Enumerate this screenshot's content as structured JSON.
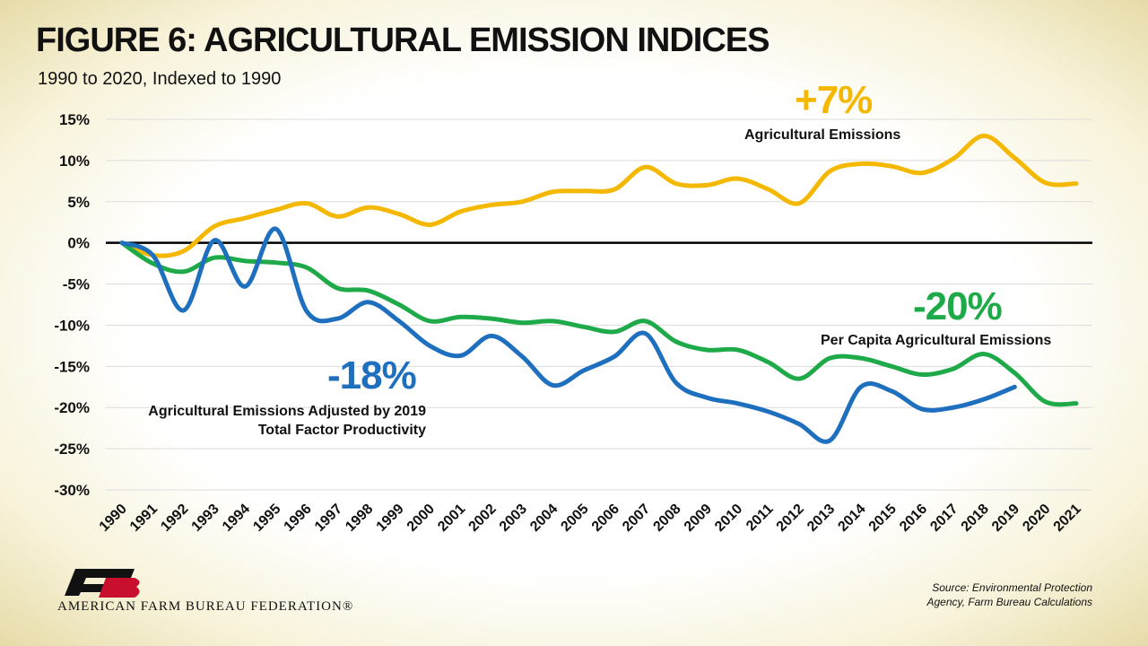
{
  "chart_data": {
    "type": "line",
    "title": "FIGURE 6: AGRICULTURAL EMISSION INDICES",
    "subtitle": "1990 to 2020, Indexed to 1990",
    "categories": [
      "1990",
      "1991",
      "1992",
      "1993",
      "1994",
      "1995",
      "1996",
      "1997",
      "1998",
      "1999",
      "2000",
      "2001",
      "2002",
      "2003",
      "2004",
      "2005",
      "2006",
      "2007",
      "2008",
      "2009",
      "2010",
      "2011",
      "2012",
      "2013",
      "2014",
      "2015",
      "2016",
      "2017",
      "2018",
      "2019",
      "2020",
      "2021"
    ],
    "ylim": [
      -30,
      15
    ],
    "yticks": [
      {
        "value": 15,
        "label": "15%"
      },
      {
        "value": 10,
        "label": "10%"
      },
      {
        "value": 5,
        "label": "5%"
      },
      {
        "value": 0,
        "label": "0%"
      },
      {
        "value": -5,
        "label": "-5%"
      },
      {
        "value": -10,
        "label": "-10%"
      },
      {
        "value": -15,
        "label": "-15%"
      },
      {
        "value": -20,
        "label": "-20%"
      },
      {
        "value": -25,
        "label": "-25%"
      },
      {
        "value": -30,
        "label": "-30%"
      }
    ],
    "grid": true,
    "series": [
      {
        "name": "Agricultural Emissions",
        "color": "#f5b800",
        "end_label": "+7%",
        "values": [
          0,
          -1.5,
          -1,
          2,
          3,
          4,
          4.8,
          3.2,
          4.3,
          3.5,
          2.2,
          3.8,
          4.6,
          5,
          6.2,
          6.3,
          6.5,
          9.2,
          7.2,
          7,
          7.8,
          6.5,
          4.8,
          8.7,
          9.6,
          9.3,
          8.5,
          10.2,
          13,
          10.3,
          7.3,
          7.2
        ]
      },
      {
        "name": "Per Capita Agricultural Emissions",
        "color": "#1faa4a",
        "end_label": "-20%",
        "values": [
          0,
          -2.5,
          -3.5,
          -1.8,
          -2.2,
          -2.4,
          -3,
          -5.5,
          -5.8,
          -7.5,
          -9.5,
          -9,
          -9.2,
          -9.7,
          -9.5,
          -10.2,
          -10.8,
          -9.5,
          -12,
          -13,
          -13,
          -14.5,
          -16.5,
          -14,
          -14,
          -15,
          -16,
          -15.3,
          -13.5,
          -15.8,
          -19.3,
          -19.5
        ]
      },
      {
        "name": "Agricultural Emissions Adjusted by 2019 Total Factor Productivity",
        "color": "#1f6fbf",
        "end_label": "-18%",
        "values": [
          0,
          -1.5,
          -8.2,
          0.3,
          -5.3,
          1.7,
          -8.3,
          -9.2,
          -7.2,
          -9.5,
          -12.5,
          -13.7,
          -11.3,
          -13.8,
          -17.3,
          -15.5,
          -13.8,
          -11,
          -17,
          -18.8,
          -19.5,
          -20.5,
          -22,
          -24,
          -17.5,
          -18,
          -20.2,
          -20,
          -19,
          -17.5,
          null,
          null
        ]
      }
    ],
    "source": "Source: Environmental Protection Agency, Farm Bureau Calculations",
    "logo_text": "AMERICAN FARM BUREAU FEDERATION®"
  }
}
